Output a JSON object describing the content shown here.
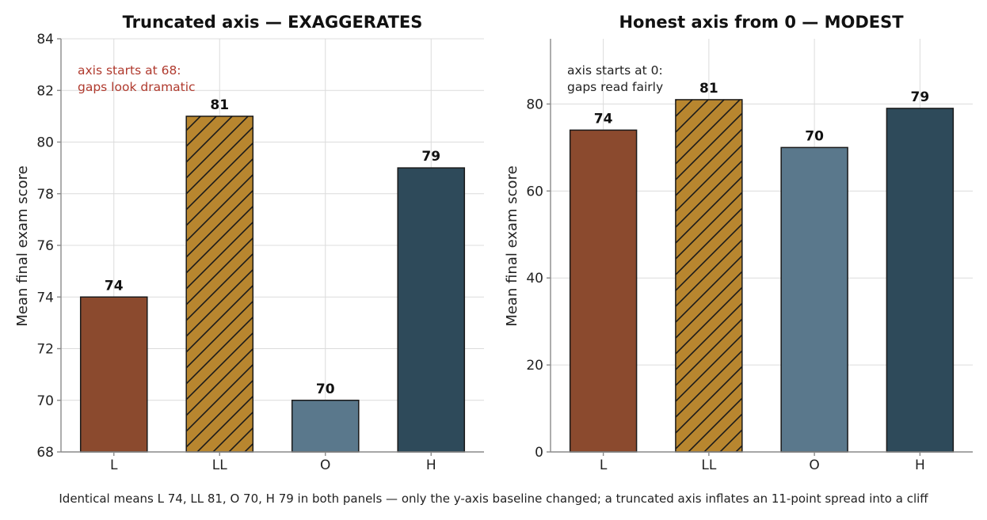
{
  "chart_data": [
    {
      "type": "bar",
      "title": "Truncated axis — EXAGGERATES",
      "ylabel": "Mean final exam score",
      "categories": [
        "L",
        "LL",
        "O",
        "H"
      ],
      "values": [
        74,
        81,
        70,
        79
      ],
      "ylim": [
        68,
        84
      ],
      "yticks": [
        68,
        70,
        72,
        74,
        76,
        78,
        80,
        82,
        84
      ],
      "grid": true,
      "annotation": [
        "axis starts at 68:",
        "gaps look dramatic"
      ],
      "annotation_color": "#b03a2e"
    },
    {
      "type": "bar",
      "title": "Honest axis from 0 — MODEST",
      "ylabel": "Mean final exam score",
      "categories": [
        "L",
        "LL",
        "O",
        "H"
      ],
      "values": [
        74,
        81,
        70,
        79
      ],
      "ylim": [
        0,
        95
      ],
      "yticks": [
        0,
        20,
        40,
        60,
        80
      ],
      "grid": true,
      "annotation": [
        "axis starts at 0:",
        "gaps read fairly"
      ],
      "annotation_color": "#222222"
    }
  ],
  "bar_colors": [
    "#8b4a2e",
    "#b8862f",
    "#5a788c",
    "#2e4a5a"
  ],
  "hatched_category": "LL",
  "caption": "Identical means L 74, LL 81, O 70, H 79 in both panels — only the y-axis baseline changed; a truncated axis inflates an 11-point spread into a cliff"
}
